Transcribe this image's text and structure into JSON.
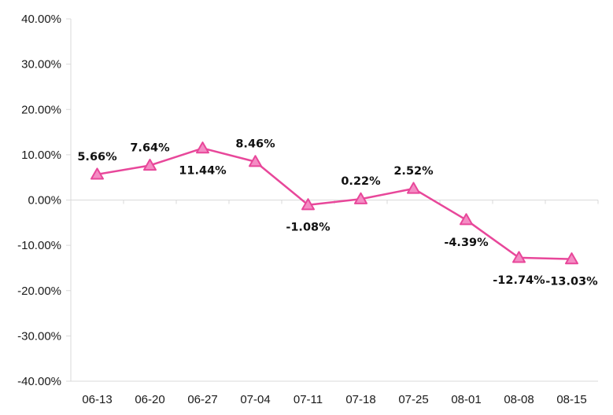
{
  "chart_data": {
    "type": "line",
    "title": "",
    "xlabel": "",
    "ylabel": "",
    "categories": [
      "06-13",
      "06-20",
      "06-27",
      "07-04",
      "07-11",
      "07-18",
      "07-25",
      "08-01",
      "08-08",
      "08-15"
    ],
    "series": [
      {
        "values": [
          5.66,
          7.64,
          11.44,
          8.46,
          -1.08,
          0.22,
          2.52,
          -4.39,
          -12.74,
          -13.03
        ],
        "labels": [
          "5.66%",
          "7.64%",
          "11.44%",
          "8.46%",
          "-1.08%",
          "0.22%",
          "2.52%",
          "-4.39%",
          "-12.74%",
          "-13.03%"
        ],
        "label_positions": [
          "above",
          "above",
          "below",
          "above",
          "below",
          "above",
          "above",
          "below",
          "below",
          "below"
        ],
        "color": "#e8479a",
        "marker": "triangle",
        "marker_fill": "#f48cc4"
      }
    ],
    "ylim": [
      -40,
      40
    ],
    "yticks": [
      40,
      30,
      20,
      10,
      0,
      -10,
      -20,
      -30,
      -40
    ],
    "ytick_labels": [
      "40.00%",
      "30.00%",
      "20.00%",
      "10.00%",
      "0.00%",
      "-10.00%",
      "-20.00%",
      "-30.00%",
      "-40.00%"
    ],
    "grid": false,
    "legend": "none",
    "axis_color": "#d9d9d9"
  }
}
